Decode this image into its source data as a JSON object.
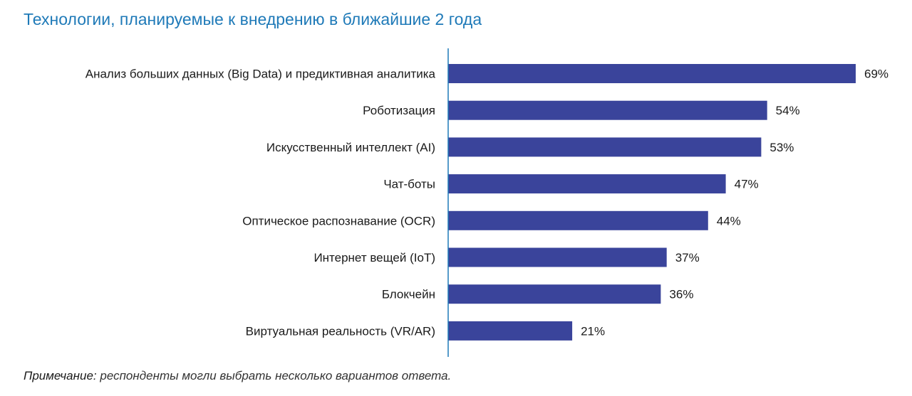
{
  "chart_data": {
    "type": "bar",
    "orientation": "horizontal",
    "title": "Технологии, планируемые к внедрению в ближайшие 2 года",
    "categories": [
      "Анализ больших данных (Big Data) и предиктивная аналитика",
      "Роботизация",
      "Искусственный интеллект (AI)",
      "Чат-боты",
      "Оптическое распознавание (OCR)",
      "Интернет вещей (IoT)",
      "Блокчейн",
      "Виртуальная реальность (VR/AR)"
    ],
    "values": [
      69,
      54,
      53,
      47,
      44,
      37,
      36,
      21
    ],
    "value_labels": [
      "69%",
      "54%",
      "53%",
      "47%",
      "44%",
      "37%",
      "36%",
      "21%"
    ],
    "unit": "%",
    "xlim": [
      0,
      69
    ],
    "grid": false,
    "legend": "none"
  },
  "colors": {
    "bar": "#3a449b",
    "axis": "#1f7ab8",
    "title": "#1f7ab8"
  },
  "note": {
    "label": "Примечание:",
    "text": "респонденты могли выбрать несколько вариантов ответа."
  }
}
